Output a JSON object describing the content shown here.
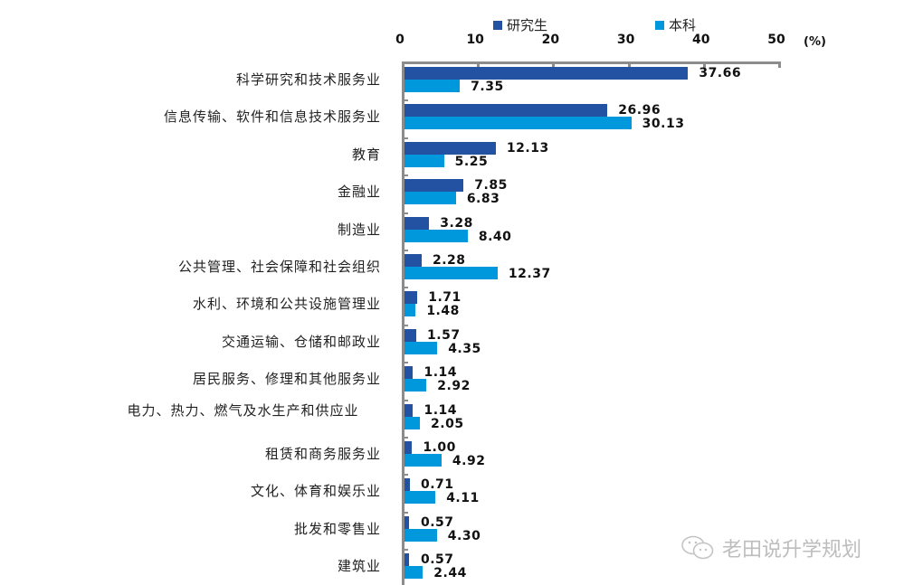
{
  "legend": {
    "series": [
      {
        "name": "研究生",
        "color": "#2452a2"
      },
      {
        "name": "本科",
        "color": "#0098dc"
      }
    ]
  },
  "axis": {
    "ticks": [
      "0",
      "10",
      "20",
      "30",
      "40",
      "50"
    ],
    "unit": "(%)"
  },
  "categories": [
    "科学研究和技术服务业",
    "信息传输、软件和信息技术服务业",
    "教育",
    "金融业",
    "制造业",
    "公共管理、社会保障和社会组织",
    "水利、环境和公共设施管理业",
    "交通运输、仓储和邮政业",
    "居民服务、修理和其他服务业",
    "电力、热力、燃气及水生产和供应业",
    "租赁和商务服务业",
    "文化、体育和娱乐业",
    "批发和零售业",
    "建筑业"
  ],
  "values": {
    "graduate": [
      "37.66",
      "26.96",
      "12.13",
      "7.85",
      "3.28",
      "2.28",
      "1.71",
      "1.57",
      "1.14",
      "1.14",
      "1.00",
      "0.71",
      "0.57",
      "0.57"
    ],
    "undergrad": [
      "7.35",
      "30.13",
      "5.25",
      "6.83",
      "8.40",
      "12.37",
      "1.48",
      "4.35",
      "2.92",
      "2.05",
      "4.92",
      "4.11",
      "4.30",
      "2.44"
    ]
  },
  "watermark": "老田说升学规划",
  "chart_data": {
    "type": "bar",
    "orientation": "horizontal",
    "title": "",
    "xlabel": "(%)",
    "ylabel": "",
    "xlim": [
      0,
      50
    ],
    "xticks": [
      0,
      10,
      20,
      30,
      40,
      50
    ],
    "axis_position": "top",
    "legend_position": "top",
    "grid": false,
    "categories": [
      "科学研究和技术服务业",
      "信息传输、软件和信息技术服务业",
      "教育",
      "金融业",
      "制造业",
      "公共管理、社会保障和社会组织",
      "水利、环境和公共设施管理业",
      "交通运输、仓储和邮政业",
      "居民服务、修理和其他服务业",
      "电力、热力、燃气及水生产和供应业",
      "租赁和商务服务业",
      "文化、体育和娱乐业",
      "批发和零售业",
      "建筑业"
    ],
    "series": [
      {
        "name": "研究生",
        "color": "#2452a2",
        "values": [
          37.66,
          26.96,
          12.13,
          7.85,
          3.28,
          2.28,
          1.71,
          1.57,
          1.14,
          1.14,
          1.0,
          0.71,
          0.57,
          0.57
        ]
      },
      {
        "name": "本科",
        "color": "#0098dc",
        "values": [
          7.35,
          30.13,
          5.25,
          6.83,
          8.4,
          12.37,
          1.48,
          4.35,
          2.92,
          2.05,
          4.92,
          4.11,
          4.3,
          2.44
        ]
      }
    ]
  }
}
